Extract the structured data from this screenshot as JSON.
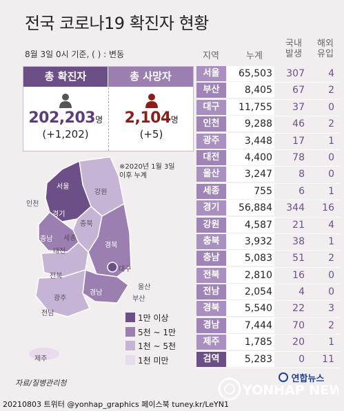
{
  "title": "전국 코로나19 확진자 현황",
  "date_note": "8월 3일 0시 기준, ( ) : 변동",
  "summary": {
    "confirmed_label": "총 확진자",
    "confirmed_value": "202,203",
    "confirmed_unit": "명",
    "confirmed_delta": "(+1,202)",
    "deaths_label": "총 사망자",
    "deaths_value": "2,104",
    "deaths_unit": "명",
    "deaths_delta": "(+5)"
  },
  "map": {
    "note_line1": "※2020년 1월 3일",
    "note_line2": "이후 누계",
    "regions": {
      "seoul": "서울",
      "incheon": "인천",
      "gyeonggi": "경기",
      "gangwon": "강원",
      "chungbuk": "충북",
      "sejong": "세종",
      "chungnam": "충남",
      "daejeon": "대전",
      "gyeongbuk": "경북",
      "daegu": "대구",
      "jeonbuk": "전북",
      "gyeongnam": "경남",
      "ulsan": "울산",
      "busan": "부산",
      "gwangju": "광주",
      "jeonnam": "전남",
      "jeju": "제주"
    },
    "legend": [
      {
        "label": "1만 이상",
        "color": "#6d4f87"
      },
      {
        "label": "5천 ~ 1만",
        "color": "#9a7fb0"
      },
      {
        "label": "1천 ~ 5천",
        "color": "#c6b4d4"
      },
      {
        "label": "1천 미만",
        "color": "#e6dcec"
      }
    ]
  },
  "source": "자료/질병관리청",
  "table": {
    "headers": {
      "region": "지역",
      "total": "누계",
      "domestic_1": "국내",
      "domestic_2": "발생",
      "overseas_1": "해외",
      "overseas_2": "유입"
    },
    "rows": [
      {
        "region": "서울",
        "total": "65,503",
        "domestic": "307",
        "overseas": "4"
      },
      {
        "region": "부산",
        "total": "8,405",
        "domestic": "67",
        "overseas": "2"
      },
      {
        "region": "대구",
        "total": "11,755",
        "domestic": "37",
        "overseas": "0"
      },
      {
        "region": "인천",
        "total": "9,288",
        "domestic": "46",
        "overseas": "2"
      },
      {
        "region": "광주",
        "total": "3,448",
        "domestic": "17",
        "overseas": "1"
      },
      {
        "region": "대전",
        "total": "4,400",
        "domestic": "78",
        "overseas": "0"
      },
      {
        "region": "울산",
        "total": "3,247",
        "domestic": "8",
        "overseas": "0"
      },
      {
        "region": "세종",
        "total": "755",
        "domestic": "6",
        "overseas": "1"
      },
      {
        "region": "경기",
        "total": "56,884",
        "domestic": "344",
        "overseas": "16"
      },
      {
        "region": "강원",
        "total": "4,587",
        "domestic": "21",
        "overseas": "4"
      },
      {
        "region": "충북",
        "total": "3,932",
        "domestic": "38",
        "overseas": "1"
      },
      {
        "region": "충남",
        "total": "5,083",
        "domestic": "51",
        "overseas": "2"
      },
      {
        "region": "전북",
        "total": "2,810",
        "domestic": "16",
        "overseas": "0"
      },
      {
        "region": "전남",
        "total": "2,054",
        "domestic": "4",
        "overseas": "0"
      },
      {
        "region": "경북",
        "total": "5,540",
        "domestic": "22",
        "overseas": "3"
      },
      {
        "region": "경남",
        "total": "7,444",
        "domestic": "70",
        "overseas": "2"
      },
      {
        "region": "제주",
        "total": "1,785",
        "domestic": "20",
        "overseas": "1"
      },
      {
        "region": "검역",
        "total": "5,283",
        "domestic": "0",
        "overseas": "11"
      }
    ]
  },
  "branding": {
    "logo": "연합뉴스",
    "watermark": "YONHAP NEWS",
    "footer": "20210803 트위터 @yonhap_graphics  페이스북 tuney.kr/LeYN1"
  }
}
